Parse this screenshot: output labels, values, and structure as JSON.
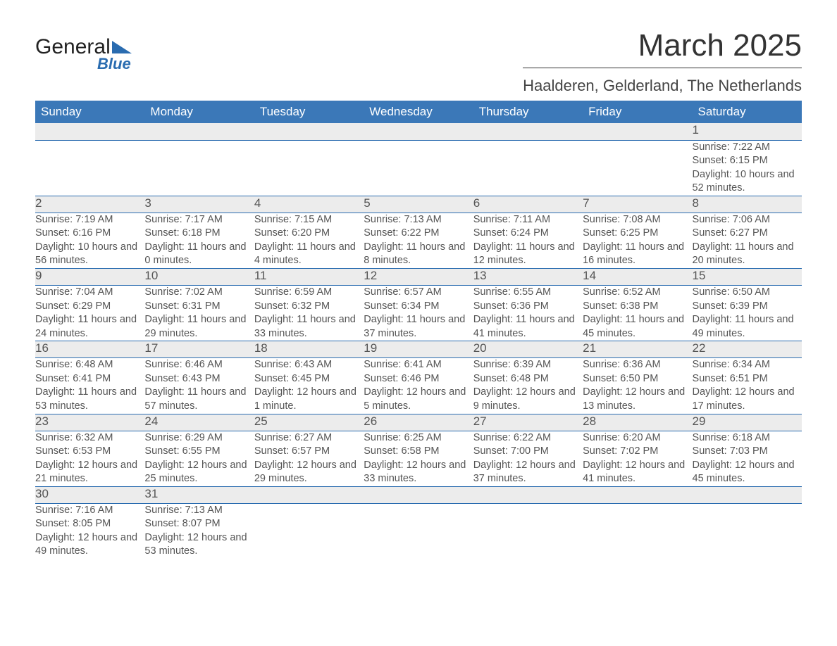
{
  "logo": {
    "brand_main": "General",
    "brand_sub": "Blue",
    "tri_color": "#2a6cb0"
  },
  "header": {
    "title": "March 2025",
    "subtitle": "Haalderen, Gelderland, The Netherlands"
  },
  "styling": {
    "header_bg": "#3b78b8",
    "header_fg": "#ffffff",
    "daynum_bg": "#ececec",
    "row_border": "#2a6cb0",
    "text_color": "#555555",
    "title_fontsize": 44,
    "subtitle_fontsize": 22,
    "weekday_fontsize": 17,
    "cell_fontsize": 14.5
  },
  "calendar": {
    "weekdays": [
      "Sunday",
      "Monday",
      "Tuesday",
      "Wednesday",
      "Thursday",
      "Friday",
      "Saturday"
    ],
    "weeks": [
      [
        null,
        null,
        null,
        null,
        null,
        null,
        {
          "day": "1",
          "sunrise": "7:22 AM",
          "sunset": "6:15 PM",
          "daylight": "10 hours and 52 minutes."
        }
      ],
      [
        {
          "day": "2",
          "sunrise": "7:19 AM",
          "sunset": "6:16 PM",
          "daylight": "10 hours and 56 minutes."
        },
        {
          "day": "3",
          "sunrise": "7:17 AM",
          "sunset": "6:18 PM",
          "daylight": "11 hours and 0 minutes."
        },
        {
          "day": "4",
          "sunrise": "7:15 AM",
          "sunset": "6:20 PM",
          "daylight": "11 hours and 4 minutes."
        },
        {
          "day": "5",
          "sunrise": "7:13 AM",
          "sunset": "6:22 PM",
          "daylight": "11 hours and 8 minutes."
        },
        {
          "day": "6",
          "sunrise": "7:11 AM",
          "sunset": "6:24 PM",
          "daylight": "11 hours and 12 minutes."
        },
        {
          "day": "7",
          "sunrise": "7:08 AM",
          "sunset": "6:25 PM",
          "daylight": "11 hours and 16 minutes."
        },
        {
          "day": "8",
          "sunrise": "7:06 AM",
          "sunset": "6:27 PM",
          "daylight": "11 hours and 20 minutes."
        }
      ],
      [
        {
          "day": "9",
          "sunrise": "7:04 AM",
          "sunset": "6:29 PM",
          "daylight": "11 hours and 24 minutes."
        },
        {
          "day": "10",
          "sunrise": "7:02 AM",
          "sunset": "6:31 PM",
          "daylight": "11 hours and 29 minutes."
        },
        {
          "day": "11",
          "sunrise": "6:59 AM",
          "sunset": "6:32 PM",
          "daylight": "11 hours and 33 minutes."
        },
        {
          "day": "12",
          "sunrise": "6:57 AM",
          "sunset": "6:34 PM",
          "daylight": "11 hours and 37 minutes."
        },
        {
          "day": "13",
          "sunrise": "6:55 AM",
          "sunset": "6:36 PM",
          "daylight": "11 hours and 41 minutes."
        },
        {
          "day": "14",
          "sunrise": "6:52 AM",
          "sunset": "6:38 PM",
          "daylight": "11 hours and 45 minutes."
        },
        {
          "day": "15",
          "sunrise": "6:50 AM",
          "sunset": "6:39 PM",
          "daylight": "11 hours and 49 minutes."
        }
      ],
      [
        {
          "day": "16",
          "sunrise": "6:48 AM",
          "sunset": "6:41 PM",
          "daylight": "11 hours and 53 minutes."
        },
        {
          "day": "17",
          "sunrise": "6:46 AM",
          "sunset": "6:43 PM",
          "daylight": "11 hours and 57 minutes."
        },
        {
          "day": "18",
          "sunrise": "6:43 AM",
          "sunset": "6:45 PM",
          "daylight": "12 hours and 1 minute."
        },
        {
          "day": "19",
          "sunrise": "6:41 AM",
          "sunset": "6:46 PM",
          "daylight": "12 hours and 5 minutes."
        },
        {
          "day": "20",
          "sunrise": "6:39 AM",
          "sunset": "6:48 PM",
          "daylight": "12 hours and 9 minutes."
        },
        {
          "day": "21",
          "sunrise": "6:36 AM",
          "sunset": "6:50 PM",
          "daylight": "12 hours and 13 minutes."
        },
        {
          "day": "22",
          "sunrise": "6:34 AM",
          "sunset": "6:51 PM",
          "daylight": "12 hours and 17 minutes."
        }
      ],
      [
        {
          "day": "23",
          "sunrise": "6:32 AM",
          "sunset": "6:53 PM",
          "daylight": "12 hours and 21 minutes."
        },
        {
          "day": "24",
          "sunrise": "6:29 AM",
          "sunset": "6:55 PM",
          "daylight": "12 hours and 25 minutes."
        },
        {
          "day": "25",
          "sunrise": "6:27 AM",
          "sunset": "6:57 PM",
          "daylight": "12 hours and 29 minutes."
        },
        {
          "day": "26",
          "sunrise": "6:25 AM",
          "sunset": "6:58 PM",
          "daylight": "12 hours and 33 minutes."
        },
        {
          "day": "27",
          "sunrise": "6:22 AM",
          "sunset": "7:00 PM",
          "daylight": "12 hours and 37 minutes."
        },
        {
          "day": "28",
          "sunrise": "6:20 AM",
          "sunset": "7:02 PM",
          "daylight": "12 hours and 41 minutes."
        },
        {
          "day": "29",
          "sunrise": "6:18 AM",
          "sunset": "7:03 PM",
          "daylight": "12 hours and 45 minutes."
        }
      ],
      [
        {
          "day": "30",
          "sunrise": "7:16 AM",
          "sunset": "8:05 PM",
          "daylight": "12 hours and 49 minutes."
        },
        {
          "day": "31",
          "sunrise": "7:13 AM",
          "sunset": "8:07 PM",
          "daylight": "12 hours and 53 minutes."
        },
        null,
        null,
        null,
        null,
        null
      ]
    ]
  },
  "labels": {
    "sunrise": "Sunrise:",
    "sunset": "Sunset:",
    "daylight": "Daylight:"
  }
}
